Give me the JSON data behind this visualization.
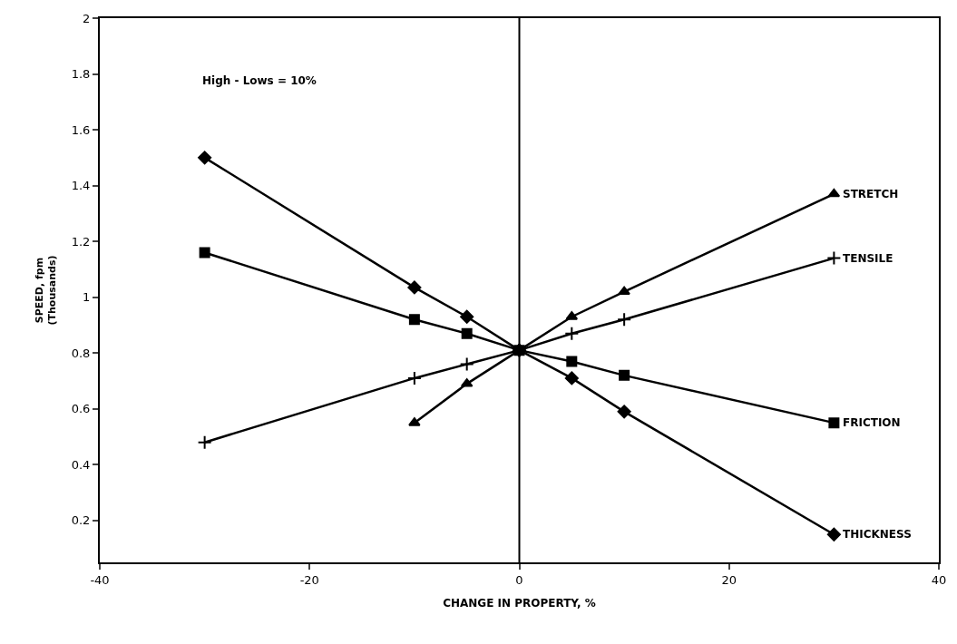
{
  "chart_data": {
    "type": "line",
    "xlabel": "CHANGE IN PROPERTY, %",
    "ylabel": "SPEED, fpm\n(Thousands)",
    "annotations": [
      "High - Lows = 10%"
    ],
    "xlim": [
      -40,
      40
    ],
    "xticks": [
      -40,
      -20,
      0,
      20,
      40
    ],
    "ylim": [
      0.05,
      2
    ],
    "yticks": [
      0.2,
      0.4,
      0.6,
      0.8,
      1,
      1.2,
      1.4,
      1.6,
      1.8,
      2
    ],
    "legend": false,
    "ref_lines": [
      {
        "axis": "x",
        "value": 0,
        "color": "#000000"
      }
    ],
    "series": [
      {
        "name": "STRETCH",
        "color": "#000000",
        "marker": "triangle",
        "x": [
          -10,
          -5,
          0,
          5,
          10,
          30
        ],
        "values": [
          0.55,
          0.69,
          0.81,
          0.93,
          1.02,
          1.37
        ]
      },
      {
        "name": "TENSILE",
        "color": "#000000",
        "marker": "cross",
        "x": [
          -30,
          -10,
          -5,
          0,
          5,
          10,
          30
        ],
        "values": [
          0.48,
          0.71,
          0.76,
          0.81,
          0.87,
          0.92,
          1.14
        ]
      },
      {
        "name": "FRICTION",
        "color": "#000000",
        "marker": "square",
        "x": [
          -30,
          -10,
          -5,
          0,
          5,
          10,
          30
        ],
        "values": [
          1.16,
          0.92,
          0.87,
          0.81,
          0.77,
          0.72,
          0.55
        ]
      },
      {
        "name": "THICKNESS",
        "color": "#000000",
        "marker": "diamond",
        "x": [
          -30,
          -10,
          -5,
          0,
          5,
          10,
          30
        ],
        "values": [
          1.5,
          1.035,
          0.93,
          0.81,
          0.71,
          0.59,
          0.15
        ]
      }
    ]
  }
}
